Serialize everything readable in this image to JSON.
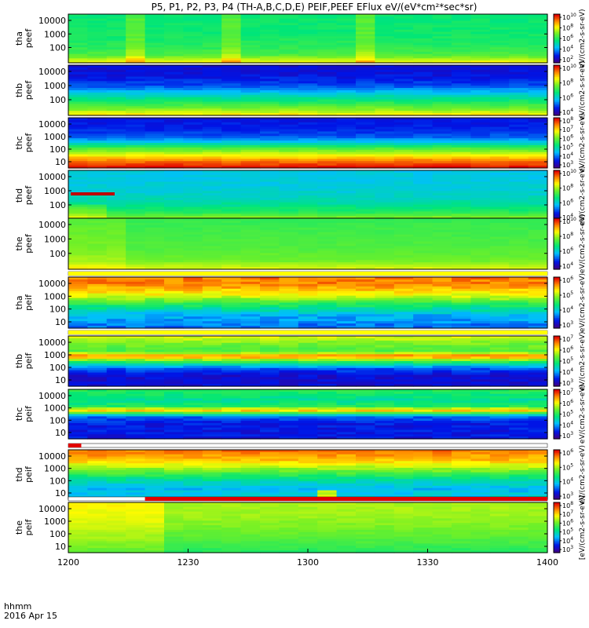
{
  "title": "P5, P1, P2, P3, P4 (TH-A,B,C,D,E) PEIF,PEEF EFlux eV/(eV*cm²*sec*sr)",
  "chart_data": {
    "type": "heatmap",
    "x_axis": {
      "range": [
        "1200",
        "1400"
      ],
      "ticks": [
        "1200",
        "1230",
        "1300",
        "1330",
        "1400"
      ],
      "label_line1": "hhmm",
      "label_line2": "2016 Apr 15"
    },
    "colorbar_unit_label": "eV/(cm2-s-sr-eV)",
    "ion_colorbar_unit_label": "[eV/(cm2-s-sr-eV)]",
    "panels": [
      {
        "id": "tha-peef",
        "label_line1": "tha",
        "label_line2": "peef",
        "y_ticks": [
          "10000",
          "1000",
          "100"
        ],
        "colorbar_ticks": [
          "10^10",
          "10^8",
          "10^6",
          "10^4",
          "10^2"
        ],
        "pattern": "electron-a"
      },
      {
        "id": "thb-peef",
        "label_line1": "thb",
        "label_line2": "peef",
        "y_ticks": [
          "10000",
          "1000",
          "100"
        ],
        "colorbar_ticks": [
          "10^10",
          "10^8",
          "10^6",
          "10^4"
        ],
        "pattern": "electron-b"
      },
      {
        "id": "thc-peef",
        "label_line1": "thc",
        "label_line2": "peef",
        "y_ticks": [
          "10000",
          "1000",
          "100",
          "10"
        ],
        "colorbar_ticks": [
          "10^8",
          "10^7",
          "10^6",
          "10^5",
          "10^4",
          "10^3"
        ],
        "pattern": "electron-c"
      },
      {
        "id": "thd-peef",
        "label_line1": "thd",
        "label_line2": "peef",
        "y_ticks": [
          "10000",
          "1000",
          "100"
        ],
        "colorbar_ticks": [
          "10^10",
          "10^8",
          "10^6",
          "10^4"
        ],
        "pattern": "electron-d"
      },
      {
        "id": "the-peef",
        "label_line1": "the",
        "label_line2": "peef",
        "y_ticks": [
          "10000",
          "1000",
          "100"
        ],
        "colorbar_ticks": [
          "10^10",
          "10^8",
          "10^6",
          "10^4"
        ],
        "pattern": "electron-e"
      },
      {
        "id": "tha-peif",
        "label_line1": "tha",
        "label_line2": "peif",
        "y_ticks": [
          "10000",
          "1000",
          "100",
          "10"
        ],
        "colorbar_ticks": [
          "10^6",
          "10^5",
          "10^4",
          "10^3"
        ],
        "pattern": "ion-a"
      },
      {
        "id": "thb-peif",
        "label_line1": "thb",
        "label_line2": "peif",
        "y_ticks": [
          "10000",
          "1000",
          "100",
          "10"
        ],
        "colorbar_ticks": [
          "10^7",
          "10^6",
          "10^5",
          "10^4",
          "10^3"
        ],
        "pattern": "ion-b"
      },
      {
        "id": "thc-peif",
        "label_line1": "thc",
        "label_line2": "peif",
        "y_ticks": [
          "10000",
          "1000",
          "100",
          "10"
        ],
        "colorbar_ticks": [
          "10^7",
          "10^6",
          "10^5",
          "10^4",
          "10^3"
        ],
        "pattern": "ion-c"
      },
      {
        "id": "thd-peif",
        "label_line1": "thd",
        "label_line2": "peif",
        "y_ticks": [
          "10000",
          "1000",
          "100",
          "10"
        ],
        "colorbar_ticks": [
          "10^6",
          "10^5",
          "10^4",
          "10^3"
        ],
        "pattern": "ion-d"
      },
      {
        "id": "the-peif",
        "label_line1": "the",
        "label_line2": "peif",
        "y_ticks": [
          "10000",
          "1000",
          "100",
          "10"
        ],
        "colorbar_ticks": [
          "10^8",
          "10^7",
          "10^6",
          "10^5",
          "10^4",
          "10^3"
        ],
        "pattern": "ion-e"
      }
    ],
    "mode_bars": [
      {
        "after_panel": "the-peef",
        "color": "#ffff00",
        "segments": [
          [
            0,
            1
          ]
        ]
      },
      {
        "after_panel": "tha-peif",
        "color": "#ffff00",
        "segments": [
          [
            0,
            1
          ]
        ]
      },
      {
        "after_panel": "thc-peif",
        "color": "#e00000",
        "segments": [
          [
            0,
            0.027
          ]
        ]
      },
      {
        "after_panel": "thd-peif",
        "color": "#e00000",
        "segments": [
          [
            0.16,
            1
          ]
        ]
      }
    ],
    "colormap": "rainbow (blue-cyan-green-yellow-red)"
  }
}
